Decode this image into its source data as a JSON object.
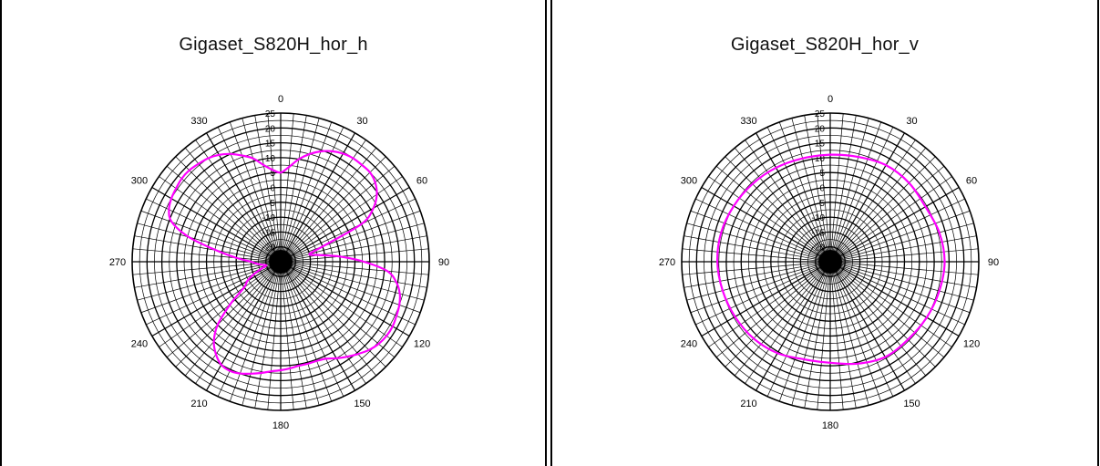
{
  "chart_data": [
    {
      "type": "polar-line",
      "title": "Gigaset_S820H_hor_h",
      "angle_labels": [
        "0",
        "30",
        "60",
        "90",
        "120",
        "150",
        "180",
        "210",
        "240",
        "270",
        "300",
        "330"
      ],
      "radial_labels": [
        "25",
        "20",
        "15",
        "10",
        "5",
        "0",
        "-5",
        "-10",
        "-15",
        "-20"
      ],
      "rlim": [
        -25,
        25
      ],
      "grid": true,
      "series": [
        {
          "color": "#ff00ff",
          "theta": [
            0,
            5,
            10,
            15,
            20,
            25,
            30,
            35,
            40,
            45,
            50,
            55,
            60,
            65,
            70,
            75,
            80,
            85,
            90,
            95,
            100,
            105,
            110,
            115,
            120,
            125,
            130,
            135,
            140,
            145,
            150,
            155,
            160,
            165,
            170,
            175,
            180,
            185,
            190,
            195,
            200,
            205,
            210,
            215,
            220,
            225,
            230,
            235,
            240,
            245,
            250,
            255,
            260,
            265,
            270,
            275,
            280,
            285,
            290,
            295,
            300,
            305,
            310,
            315,
            320,
            325,
            330,
            335,
            340,
            345,
            350,
            355
          ],
          "r": [
            5,
            7,
            10,
            12.5,
            14.5,
            16,
            17,
            17.5,
            17.5,
            17.5,
            16.5,
            14.5,
            11,
            5,
            -10,
            -15,
            -12,
            -5,
            3,
            11,
            14.5,
            16.5,
            17.5,
            18,
            18.5,
            18.5,
            18,
            17,
            15.5,
            14,
            12.5,
            11,
            10.5,
            10.5,
            10.5,
            11,
            11.5,
            12,
            13,
            14,
            15,
            15.5,
            15,
            13,
            10,
            5,
            -3,
            -10,
            -12,
            -15,
            -18,
            -20,
            -19,
            -17,
            -15,
            -10,
            -3,
            7,
            14,
            16.5,
            17.5,
            18,
            18.5,
            18.5,
            18,
            17.5,
            16.5,
            15,
            13,
            11,
            8,
            6
          ],
          "interpolation": "smooth"
        }
      ]
    },
    {
      "type": "polar-line",
      "title": "Gigaset_S820H_hor_v",
      "angle_labels": [
        "0",
        "30",
        "60",
        "90",
        "120",
        "150",
        "180",
        "210",
        "240",
        "270",
        "300",
        "330"
      ],
      "radial_labels": [
        "25",
        "20",
        "15",
        "10",
        "5",
        "0",
        "-5",
        "-10",
        "-15",
        "-20"
      ],
      "rlim": [
        -25,
        25
      ],
      "grid": true,
      "series": [
        {
          "color": "#ff00ff",
          "theta": [
            0,
            15,
            30,
            45,
            60,
            75,
            90,
            105,
            120,
            135,
            150,
            165,
            180,
            195,
            210,
            225,
            240,
            255,
            270,
            285,
            300,
            315,
            330,
            345
          ],
          "r": [
            11,
            11.5,
            12.5,
            12.5,
            12,
            13,
            13.5,
            13,
            12.5,
            12,
            12,
            10.5,
            9,
            9,
            10.5,
            11.5,
            12,
            12.5,
            13,
            13,
            12.5,
            12,
            11.5,
            11
          ],
          "interpolation": "smooth"
        }
      ]
    }
  ]
}
